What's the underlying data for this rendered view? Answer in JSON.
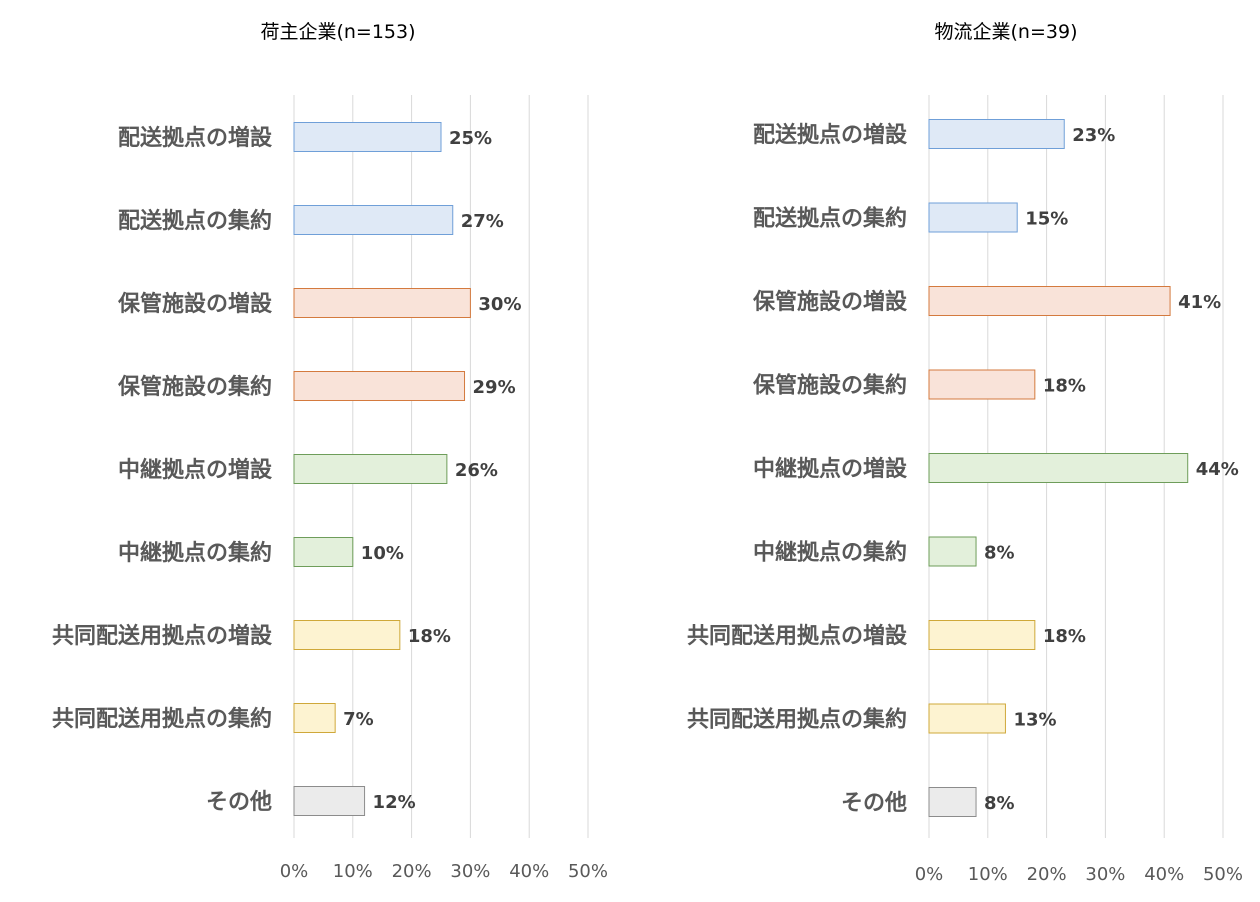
{
  "chart_data": [
    {
      "type": "bar",
      "orientation": "horizontal",
      "title": "荷主企業(n=153)",
      "categories": [
        "配送拠点の増設",
        "配送拠点の集約",
        "保管施設の増設",
        "保管施設の集約",
        "中継拠点の増設",
        "中継拠点の集約",
        "共同配送用拠点の増設",
        "共同配送用拠点の集約",
        "その他"
      ],
      "values": [
        25,
        27,
        30,
        29,
        26,
        10,
        18,
        7,
        12
      ],
      "value_labels": [
        "25%",
        "27%",
        "30%",
        "29%",
        "26%",
        "10%",
        "18%",
        "7%",
        "12%"
      ],
      "xlim": [
        0,
        50
      ],
      "x_ticks": [
        "0%",
        "10%",
        "20%",
        "30%",
        "40%",
        "50%"
      ],
      "grid": true,
      "bar_fills": [
        "#dfe9f6",
        "#dfe9f6",
        "#f9e3d9",
        "#f9e3d9",
        "#e3f0db",
        "#e3f0db",
        "#fdf3d1",
        "#fdf3d1",
        "#ebebeb"
      ],
      "bar_strokes": [
        "#6f9fd8",
        "#6f9fd8",
        "#d47a3e",
        "#d47a3e",
        "#6e9d5a",
        "#6e9d5a",
        "#cfa83a",
        "#cfa83a",
        "#8c8c8c"
      ]
    },
    {
      "type": "bar",
      "orientation": "horizontal",
      "title": "物流企業(n=39)",
      "categories": [
        "配送拠点の増設",
        "配送拠点の集約",
        "保管施設の増設",
        "保管施設の集約",
        "中継拠点の増設",
        "中継拠点の集約",
        "共同配送用拠点の増設",
        "共同配送用拠点の集約",
        "その他"
      ],
      "values": [
        23,
        15,
        41,
        18,
        44,
        8,
        18,
        13,
        8
      ],
      "value_labels": [
        "23%",
        "15%",
        "41%",
        "18%",
        "44%",
        "8%",
        "18%",
        "13%",
        "8%"
      ],
      "xlim": [
        0,
        50
      ],
      "x_ticks": [
        "0%",
        "10%",
        "20%",
        "30%",
        "40%",
        "50%"
      ],
      "grid": true,
      "bar_fills": [
        "#dfe9f6",
        "#dfe9f6",
        "#f9e3d9",
        "#f9e3d9",
        "#e3f0db",
        "#e3f0db",
        "#fdf3d1",
        "#fdf3d1",
        "#ebebeb"
      ],
      "bar_strokes": [
        "#6f9fd8",
        "#6f9fd8",
        "#d47a3e",
        "#d47a3e",
        "#6e9d5a",
        "#6e9d5a",
        "#cfa83a",
        "#cfa83a",
        "#8c8c8c"
      ]
    }
  ]
}
